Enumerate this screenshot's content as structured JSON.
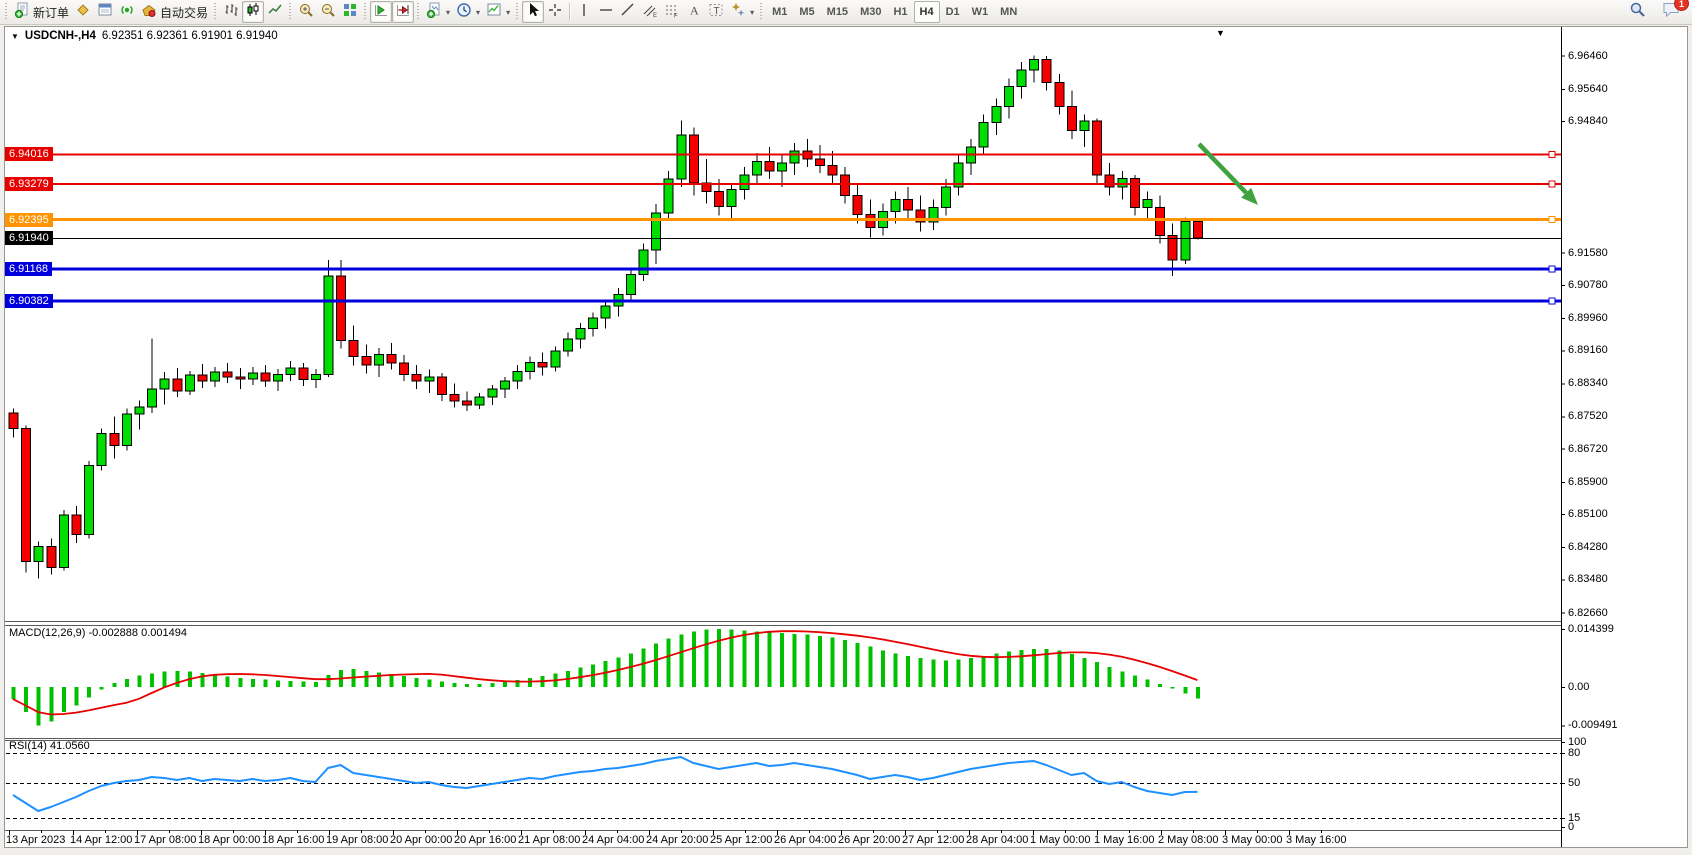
{
  "toolbar": {
    "new_order_label": "新订单",
    "auto_trading_label": "自动交易",
    "timeframes": [
      "M1",
      "M5",
      "M15",
      "M30",
      "H1",
      "H4",
      "D1",
      "W1",
      "MN"
    ],
    "active_timeframe": "H4",
    "notification_count": "1"
  },
  "window": {
    "symbol_label": "USDCNH-,H4",
    "ohlc_label": "6.92351 6.92361 6.91901 6.91940"
  },
  "indicators": {
    "macd": {
      "name": "MACD(12,26,9)",
      "values": "-0.002888 0.001494"
    },
    "rsi": {
      "name": "RSI(14)",
      "value": "41.0560"
    }
  },
  "chart_data": {
    "type": "candlestick",
    "symbol": "USDCNH-",
    "timeframe": "H4",
    "current_bar": {
      "open": "6.92351",
      "high": "6.92361",
      "low": "6.91901",
      "close": "6.91940"
    },
    "ylim": [
      6.8245,
      6.9717
    ],
    "colors": {
      "up": "#00dd00",
      "down": "#f40000",
      "wick": "#000000",
      "macd_hist": "#00c000",
      "macd_signal": "#e60000",
      "rsi_line": "#1e90ff"
    },
    "price_axis_ticks": [
      "6.96460",
      "6.95640",
      "6.94840",
      "6.91580",
      "6.90780",
      "6.89960",
      "6.89160",
      "6.88340",
      "6.87520",
      "6.86720",
      "6.85900",
      "6.85100",
      "6.84280",
      "6.83480",
      "6.82660"
    ],
    "time_axis_labels": [
      "13 Apr 2023",
      "14 Apr 12:00",
      "17 Apr 08:00",
      "18 Apr 00:00",
      "18 Apr 16:00",
      "19 Apr 08:00",
      "20 Apr 00:00",
      "20 Apr 16:00",
      "21 Apr 08:00",
      "24 Apr 04:00",
      "24 Apr 20:00",
      "25 Apr 12:00",
      "26 Apr 04:00",
      "26 Apr 20:00",
      "27 Apr 12:00",
      "28 Apr 04:00",
      "1 May 00:00",
      "1 May 16:00",
      "2 May 08:00",
      "3 May 00:00",
      "3 May 16:00"
    ],
    "levels": [
      {
        "label": "6.94016",
        "value": 6.94016,
        "color": "#e60000",
        "width": 2
      },
      {
        "label": "6.93279",
        "value": 6.93279,
        "color": "#e60000",
        "width": 2
      },
      {
        "label": "6.92395",
        "value": 6.92395,
        "color": "#ff9400",
        "width": 3
      },
      {
        "label": "6.91168",
        "value": 6.91168,
        "color": "#0000dd",
        "width": 3
      },
      {
        "label": "6.90382",
        "value": 6.90382,
        "color": "#0000dd",
        "width": 3
      }
    ],
    "current_price": {
      "label": "6.91940",
      "value": 6.9194,
      "color": "#000000"
    },
    "annotation_arrow": {
      "from": [
        1194,
        117
      ],
      "to": [
        1253,
        178
      ],
      "color": "#3fa23f"
    },
    "candles": [
      [
        6.876,
        6.8772,
        6.87,
        6.8722
      ],
      [
        6.8722,
        6.873,
        6.8365,
        6.8392
      ],
      [
        6.8392,
        6.8442,
        6.835,
        6.843
      ],
      [
        6.843,
        6.845,
        6.836,
        6.8378
      ],
      [
        6.8378,
        6.852,
        6.837,
        6.8508
      ],
      [
        6.8508,
        6.853,
        6.8438,
        6.846
      ],
      [
        6.846,
        6.8642,
        6.845,
        6.863
      ],
      [
        6.863,
        6.8722,
        6.8618,
        6.871
      ],
      [
        6.871,
        6.8752,
        6.8648,
        6.868
      ],
      [
        6.868,
        6.8772,
        6.8668,
        6.8758
      ],
      [
        6.8758,
        6.8792,
        6.872,
        6.8775
      ],
      [
        6.8775,
        6.8945,
        6.876,
        6.882
      ],
      [
        6.882,
        6.8862,
        6.8782,
        6.8845
      ],
      [
        6.8845,
        6.8872,
        6.88,
        6.8815
      ],
      [
        6.8815,
        6.8865,
        6.8805,
        6.8855
      ],
      [
        6.8855,
        6.8882,
        6.8822,
        6.884
      ],
      [
        6.884,
        6.8875,
        6.8825,
        6.8862
      ],
      [
        6.8862,
        6.8885,
        6.8835,
        6.885
      ],
      [
        6.885,
        6.8872,
        6.882,
        6.8845
      ],
      [
        6.8845,
        6.8875,
        6.883,
        6.886
      ],
      [
        6.886,
        6.888,
        6.8825,
        6.884
      ],
      [
        6.884,
        6.887,
        6.8815,
        6.8856
      ],
      [
        6.8856,
        6.889,
        6.884,
        6.8872
      ],
      [
        6.8872,
        6.8885,
        6.8828,
        6.8844
      ],
      [
        6.8844,
        6.887,
        6.8822,
        6.8856
      ],
      [
        6.8856,
        6.914,
        6.885,
        6.91
      ],
      [
        6.91,
        6.914,
        6.892,
        6.894
      ],
      [
        6.894,
        6.8978,
        6.8878,
        6.89
      ],
      [
        6.89,
        6.893,
        6.8858,
        6.888
      ],
      [
        6.888,
        6.8922,
        6.885,
        6.8906
      ],
      [
        6.8906,
        6.8934,
        6.8868,
        6.8884
      ],
      [
        6.8884,
        6.8904,
        6.884,
        6.8856
      ],
      [
        6.8856,
        6.888,
        6.882,
        6.884
      ],
      [
        6.884,
        6.8868,
        6.881,
        6.885
      ],
      [
        6.885,
        6.886,
        6.879,
        6.8806
      ],
      [
        6.8806,
        6.8834,
        6.8774,
        6.879
      ],
      [
        6.879,
        6.8814,
        6.8766,
        6.878
      ],
      [
        6.878,
        6.881,
        6.877,
        6.88
      ],
      [
        6.88,
        6.883,
        6.878,
        6.882
      ],
      [
        6.882,
        6.885,
        6.8798,
        6.884
      ],
      [
        6.884,
        6.888,
        6.882,
        6.8864
      ],
      [
        6.8864,
        6.89,
        6.8844,
        6.8886
      ],
      [
        6.8886,
        6.891,
        6.8854,
        6.8874
      ],
      [
        6.8874,
        6.8925,
        6.8864,
        6.8914
      ],
      [
        6.8914,
        6.896,
        6.89,
        6.8944
      ],
      [
        6.8944,
        6.8984,
        6.892,
        6.897
      ],
      [
        6.897,
        6.901,
        6.895,
        6.8996
      ],
      [
        6.8996,
        6.904,
        6.897,
        6.9026
      ],
      [
        6.9026,
        6.907,
        6.9,
        6.9054
      ],
      [
        6.9054,
        6.912,
        6.904,
        6.9104
      ],
      [
        6.9104,
        6.918,
        6.9088,
        6.9164
      ],
      [
        6.9164,
        6.9278,
        6.913,
        6.9256
      ],
      [
        6.9256,
        6.936,
        6.924,
        6.934
      ],
      [
        6.934,
        6.9485,
        6.932,
        6.945
      ],
      [
        6.945,
        6.9468,
        6.93,
        6.933
      ],
      [
        6.933,
        6.939,
        6.928,
        6.931
      ],
      [
        6.931,
        6.934,
        6.925,
        6.9272
      ],
      [
        6.9272,
        6.933,
        6.924,
        6.9314
      ],
      [
        6.9314,
        6.937,
        6.929,
        6.935
      ],
      [
        6.935,
        6.9405,
        6.933,
        6.9384
      ],
      [
        6.9384,
        6.942,
        6.934,
        6.936
      ],
      [
        6.936,
        6.94,
        6.932,
        6.938
      ],
      [
        6.938,
        6.943,
        6.935,
        6.941
      ],
      [
        6.941,
        6.944,
        6.937,
        6.939
      ],
      [
        6.939,
        6.9425,
        6.9355,
        6.9374
      ],
      [
        6.9374,
        6.941,
        6.933,
        6.935
      ],
      [
        6.935,
        6.937,
        6.928,
        6.93
      ],
      [
        6.93,
        6.933,
        6.923,
        6.9252
      ],
      [
        6.9252,
        6.929,
        6.9195,
        6.922
      ],
      [
        6.922,
        6.928,
        6.92,
        6.926
      ],
      [
        6.926,
        6.931,
        6.923,
        6.929
      ],
      [
        6.929,
        6.932,
        6.924,
        6.9264
      ],
      [
        6.9264,
        6.93,
        6.921,
        6.9234
      ],
      [
        6.9234,
        6.929,
        6.9214,
        6.927
      ],
      [
        6.927,
        6.934,
        6.925,
        6.932
      ],
      [
        6.932,
        6.94,
        6.93,
        6.938
      ],
      [
        6.938,
        6.944,
        6.935,
        6.942
      ],
      [
        6.942,
        6.95,
        6.94,
        6.948
      ],
      [
        6.948,
        6.954,
        6.945,
        6.952
      ],
      [
        6.952,
        6.959,
        6.949,
        6.957
      ],
      [
        6.957,
        6.963,
        6.954,
        6.961
      ],
      [
        6.961,
        6.9646,
        6.958,
        6.9636
      ],
      [
        6.9636,
        6.9645,
        6.956,
        6.958
      ],
      [
        6.958,
        6.96,
        6.95,
        6.952
      ],
      [
        6.952,
        6.956,
        6.944,
        6.946
      ],
      [
        6.946,
        6.95,
        6.942,
        6.9484
      ],
      [
        6.9484,
        6.949,
        6.933,
        6.935
      ],
      [
        6.935,
        6.938,
        6.93,
        6.932
      ],
      [
        6.932,
        6.936,
        6.929,
        6.9342
      ],
      [
        6.9342,
        6.935,
        6.925,
        6.927
      ],
      [
        6.927,
        6.931,
        6.924,
        6.929
      ],
      [
        6.927,
        6.93,
        6.918,
        6.92
      ],
      [
        6.92,
        6.923,
        6.91,
        6.914
      ],
      [
        6.914,
        6.9245,
        6.913,
        6.9235
      ],
      [
        6.92351,
        6.92361,
        6.91901,
        6.9194
      ]
    ],
    "macd": {
      "axis_ticks": [
        "0.014399",
        "0.00",
        "-0.009491"
      ],
      "range": [
        -0.009491,
        0.014399
      ],
      "signal_period": 9,
      "histogram": [
        -0.003,
        -0.0062,
        -0.0095,
        -0.0086,
        -0.0062,
        -0.0046,
        -0.0026,
        -0.0006,
        0.001,
        0.002,
        0.0028,
        0.0034,
        0.0038,
        0.004,
        0.0038,
        0.0035,
        0.003,
        0.0026,
        0.0022,
        0.002,
        0.0018,
        0.0016,
        0.0015,
        0.0014,
        0.0013,
        0.003,
        0.0042,
        0.0045,
        0.004,
        0.0036,
        0.0032,
        0.0027,
        0.0022,
        0.0018,
        0.0014,
        0.001,
        0.0008,
        0.0008,
        0.001,
        0.0013,
        0.0017,
        0.0022,
        0.0027,
        0.0033,
        0.004,
        0.0048,
        0.0056,
        0.0064,
        0.0073,
        0.0083,
        0.0095,
        0.0108,
        0.012,
        0.013,
        0.0138,
        0.0143,
        0.0144,
        0.0142,
        0.014,
        0.0138,
        0.0136,
        0.0134,
        0.0132,
        0.013,
        0.0127,
        0.0123,
        0.0117,
        0.0109,
        0.01,
        0.0091,
        0.0083,
        0.0077,
        0.0072,
        0.0068,
        0.0066,
        0.0068,
        0.0072,
        0.0077,
        0.0083,
        0.0088,
        0.0092,
        0.0094,
        0.0094,
        0.009,
        0.0082,
        0.0072,
        0.0062,
        0.005,
        0.0038,
        0.0028,
        0.0018,
        0.0008,
        -0.0004,
        -0.0016,
        -0.0029
      ]
    },
    "rsi": {
      "axis_ticks": [
        "100",
        "80",
        "50",
        "15",
        "0"
      ],
      "levels": [
        80,
        50,
        15
      ],
      "range": [
        0,
        100
      ],
      "values": [
        38,
        30,
        22,
        26,
        31,
        36,
        42,
        47,
        50,
        52,
        53,
        56,
        55,
        53,
        55,
        52,
        54,
        53,
        52,
        54,
        52,
        53,
        55,
        52,
        51,
        65,
        68,
        60,
        58,
        56,
        54,
        52,
        50,
        51,
        48,
        46,
        45,
        47,
        49,
        51,
        53,
        55,
        54,
        57,
        59,
        61,
        62,
        64,
        65,
        67,
        69,
        72,
        74,
        76,
        70,
        67,
        64,
        66,
        68,
        70,
        67,
        68,
        70,
        68,
        66,
        64,
        61,
        58,
        54,
        56,
        58,
        56,
        53,
        55,
        58,
        61,
        64,
        66,
        68,
        70,
        71,
        72,
        68,
        63,
        58,
        60,
        52,
        49,
        51,
        46,
        42,
        40,
        38,
        41,
        41.06
      ]
    }
  }
}
